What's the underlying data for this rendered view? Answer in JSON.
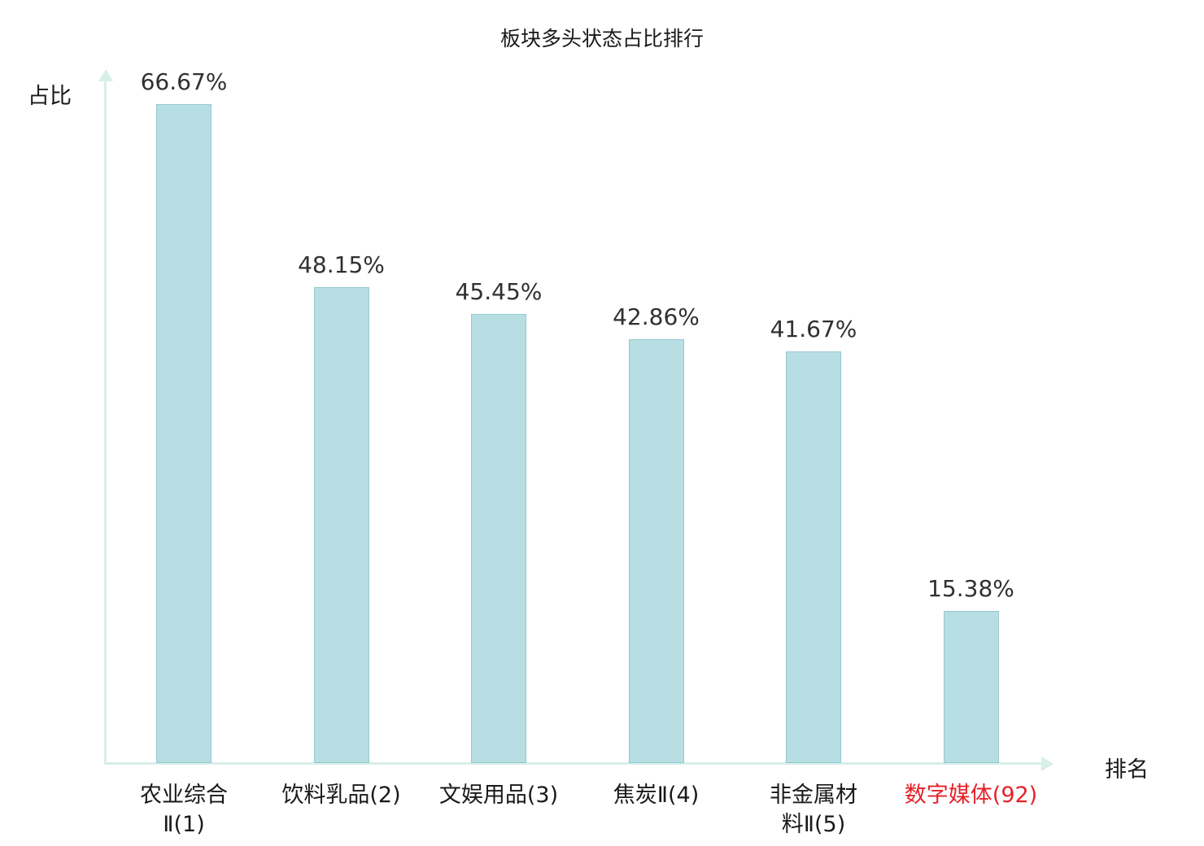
{
  "chart_data": {
    "type": "bar",
    "title": "板块多头状态占比排行",
    "xlabel": "排名",
    "ylabel": "占比",
    "categories": [
      "农业综合Ⅱ(1)",
      "饮料乳品(2)",
      "文娱用品(3)",
      "焦炭Ⅱ(4)",
      "非金属材料Ⅱ(5)",
      "数字媒体(92)"
    ],
    "category_lines": [
      [
        "农业综合",
        "Ⅱ(1)"
      ],
      [
        "饮料乳品(2)"
      ],
      [
        "文娱用品(3)"
      ],
      [
        "焦炭Ⅱ(4)"
      ],
      [
        "非金属材",
        "料Ⅱ(5)"
      ],
      [
        "数字媒体(92)"
      ]
    ],
    "values": [
      66.67,
      48.15,
      45.45,
      42.86,
      41.67,
      15.38
    ],
    "value_labels": [
      "66.67%",
      "48.15%",
      "45.45%",
      "42.86%",
      "41.67%",
      "15.38%"
    ],
    "highlight_index": 5,
    "ylim": [
      0,
      70
    ],
    "grid": false,
    "legend": false
  },
  "colors": {
    "bar_fill": "#b7dee3",
    "bar_border": "#96c8d0",
    "axis": "#d7efe8",
    "value_text": "#303030",
    "category_text": "#1a1a1a",
    "highlight_text": "#e62129"
  }
}
